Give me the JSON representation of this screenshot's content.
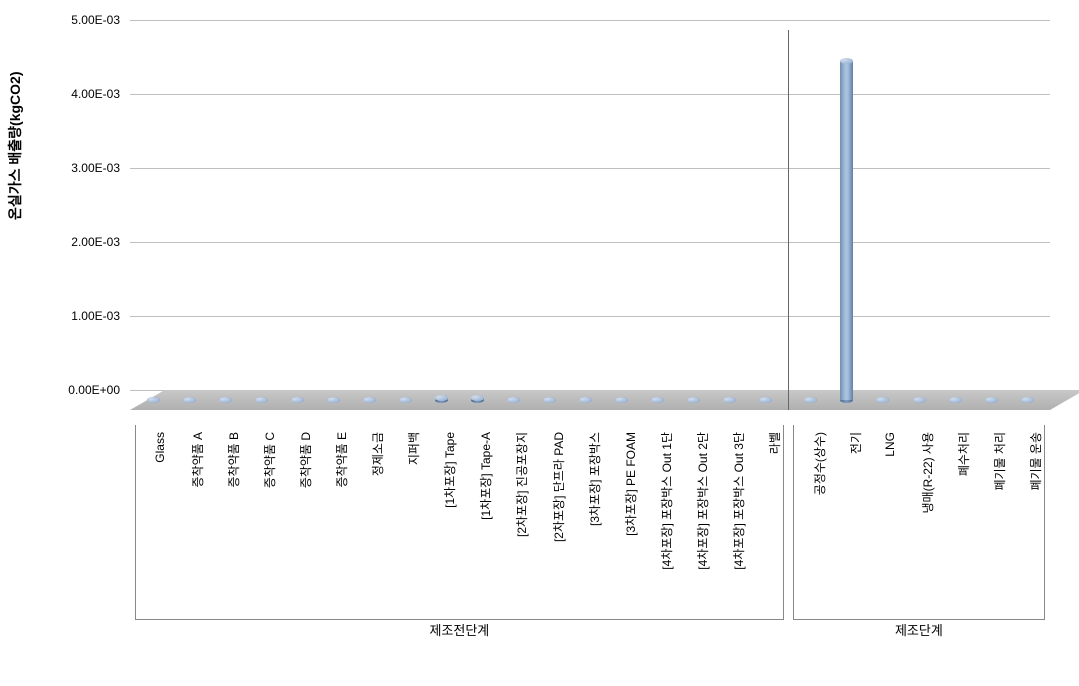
{
  "chart": {
    "type": "bar-3d-cylinder",
    "y_axis_label": "온실가스 배출량(kgCO2)",
    "y_axis_label_fontsize": 14,
    "background_color": "#ffffff",
    "floor_color": "#bcbcbc",
    "grid_color": "#bfbfbf",
    "bar_colors": {
      "fill_light": "#a7c0de",
      "fill_dark": "#5d7fa5",
      "top": "#c5d5e8"
    },
    "x_label_fontsize": 12,
    "tick_fontsize": 12,
    "group_label_fontsize": 13,
    "ylim": [
      0,
      0.005
    ],
    "yticks": [
      {
        "value": 0.0,
        "label": "0.00E+00"
      },
      {
        "value": 0.001,
        "label": "1.00E-03"
      },
      {
        "value": 0.002,
        "label": "2.00E-03"
      },
      {
        "value": 0.003,
        "label": "3.00E-03"
      },
      {
        "value": 0.004,
        "label": "4.00E-03"
      },
      {
        "value": 0.005,
        "label": "5.00E-03"
      }
    ],
    "groups": [
      {
        "label": "제조전단계",
        "items": [
          {
            "label": "Glass",
            "value": 2e-05
          },
          {
            "label": "증착약품 A",
            "value": 1e-05
          },
          {
            "label": "증착약품 B",
            "value": 1e-05
          },
          {
            "label": "증착약품 C",
            "value": 1e-05
          },
          {
            "label": "증착약품 D",
            "value": 1e-05
          },
          {
            "label": "증착약품 E",
            "value": 1e-05
          },
          {
            "label": "정제소금",
            "value": 1e-05
          },
          {
            "label": "지퍼백",
            "value": 1e-05
          },
          {
            "label": "[1차포장] Tape",
            "value": 7e-05
          },
          {
            "label": "[1차포장] Tape-A",
            "value": 7e-05
          },
          {
            "label": "[2차포장] 진공포장지",
            "value": 1e-05
          },
          {
            "label": "[2차포장] 단프라 PAD",
            "value": 2e-05
          },
          {
            "label": "[3차포장] 포장박스",
            "value": 1e-05
          },
          {
            "label": "[3차포장] PE FOAM",
            "value": 1e-05
          },
          {
            "label": "[4차포장] 포장박스 Out 1단",
            "value": 1e-05
          },
          {
            "label": "[4차포장] 포장박스 Out 2단",
            "value": 1e-05
          },
          {
            "label": "[4차포장] 포장박스 Out 3단",
            "value": 1e-05
          },
          {
            "label": "라벨",
            "value": 1e-05
          }
        ]
      },
      {
        "label": "제조단계",
        "items": [
          {
            "label": "공정수(상수)",
            "value": 1e-05
          },
          {
            "label": "전기",
            "value": 0.00462
          },
          {
            "label": "LNG",
            "value": 2e-05
          },
          {
            "label": "냉매(R-22) 사용",
            "value": 1e-05
          },
          {
            "label": "폐수처리",
            "value": 2e-05
          },
          {
            "label": "폐기물 처리",
            "value": 1e-05
          },
          {
            "label": "폐기물 운송",
            "value": 1e-05
          }
        ]
      }
    ]
  }
}
